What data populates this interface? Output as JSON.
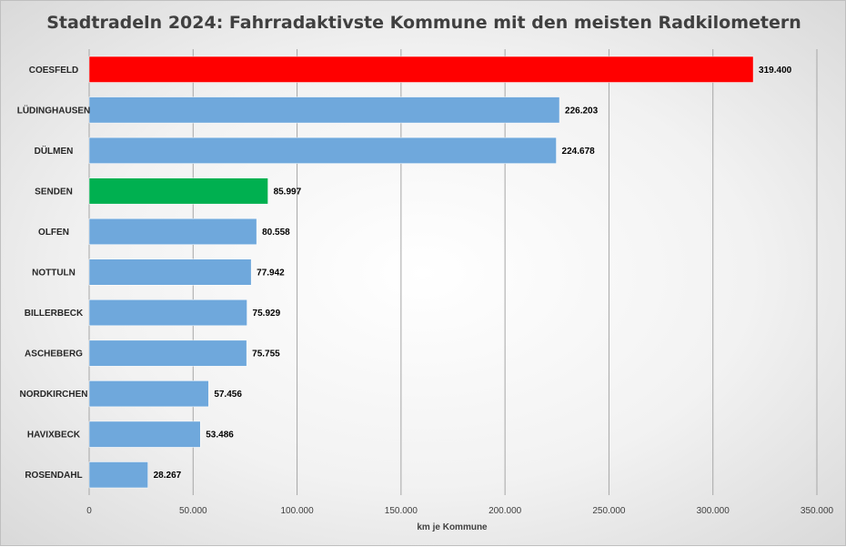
{
  "chart_data": {
    "type": "bar",
    "orientation": "horizontal",
    "title": "Stadtradeln 2024: Fahrradaktivste Kommune mit den meisten Radkilometern",
    "xlabel": "km je Kommune",
    "ylabel": "",
    "xlim": [
      0,
      350000
    ],
    "xticks": [
      0,
      50000,
      100000,
      150000,
      200000,
      250000,
      300000,
      350000
    ],
    "xtick_labels": [
      "0",
      "50.000",
      "100.000",
      "150.000",
      "200.000",
      "250.000",
      "300.000",
      "350.000"
    ],
    "grid": "vertical",
    "categories": [
      "COESFELD",
      "LÜDINGHAUSEN",
      "DÜLMEN",
      "SENDEN",
      "OLFEN",
      "NOTTULN",
      "BILLERBECK",
      "ASCHEBERG",
      "NORDKIRCHEN",
      "HAVIXBECK",
      "ROSENDAHL"
    ],
    "values": [
      319400,
      226203,
      224678,
      85997,
      80558,
      77942,
      75929,
      75755,
      57456,
      53486,
      28267
    ],
    "value_labels": [
      "319.400",
      "226.203",
      "224.678",
      "85.997",
      "80.558",
      "77.942",
      "75.929",
      "75.755",
      "57.456",
      "53.486",
      "28.267"
    ],
    "colors": [
      "#ff0000",
      "#6fa8dc",
      "#6fa8dc",
      "#00b050",
      "#6fa8dc",
      "#6fa8dc",
      "#6fa8dc",
      "#6fa8dc",
      "#6fa8dc",
      "#6fa8dc",
      "#6fa8dc"
    ]
  }
}
